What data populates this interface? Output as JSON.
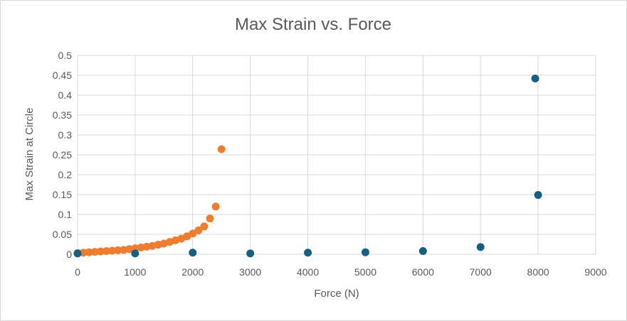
{
  "chart_data": {
    "type": "scatter",
    "title": "Max Strain vs. Force",
    "xlabel": "Force (N)",
    "ylabel": "Max Strain at Circle",
    "xlim": [
      0,
      9000
    ],
    "ylim": [
      0,
      0.5
    ],
    "x_ticks": [
      "0",
      "1000",
      "2000",
      "3000",
      "4000",
      "5000",
      "6000",
      "7000",
      "8000",
      "9000"
    ],
    "y_ticks": [
      "0",
      "0.05",
      "0.1",
      "0.15",
      "0.2",
      "0.25",
      "0.3",
      "0.35",
      "0.4",
      "0.45",
      "0.5"
    ],
    "grid": true,
    "legend": "none",
    "series": [
      {
        "color": "#ED7D31",
        "points": [
          [
            0,
            0.003
          ],
          [
            100,
            0.004
          ],
          [
            200,
            0.005
          ],
          [
            300,
            0.006
          ],
          [
            400,
            0.007
          ],
          [
            500,
            0.008
          ],
          [
            600,
            0.009
          ],
          [
            700,
            0.01
          ],
          [
            800,
            0.011
          ],
          [
            900,
            0.013
          ],
          [
            1000,
            0.015
          ],
          [
            1100,
            0.017
          ],
          [
            1200,
            0.019
          ],
          [
            1300,
            0.021
          ],
          [
            1400,
            0.024
          ],
          [
            1500,
            0.027
          ],
          [
            1600,
            0.031
          ],
          [
            1700,
            0.035
          ],
          [
            1800,
            0.039
          ],
          [
            1900,
            0.045
          ],
          [
            2000,
            0.052
          ],
          [
            2100,
            0.06
          ],
          [
            2200,
            0.07
          ],
          [
            2300,
            0.09
          ],
          [
            2400,
            0.12
          ],
          [
            2500,
            0.264
          ]
        ]
      },
      {
        "color": "#156082",
        "points": [
          [
            0,
            0.002
          ],
          [
            1000,
            0.002
          ],
          [
            2000,
            0.004
          ],
          [
            3000,
            0.002
          ],
          [
            4000,
            0.004
          ],
          [
            5000,
            0.005
          ],
          [
            6000,
            0.008
          ],
          [
            7000,
            0.018
          ],
          [
            7950,
            0.442
          ],
          [
            8000,
            0.149
          ]
        ]
      }
    ]
  }
}
